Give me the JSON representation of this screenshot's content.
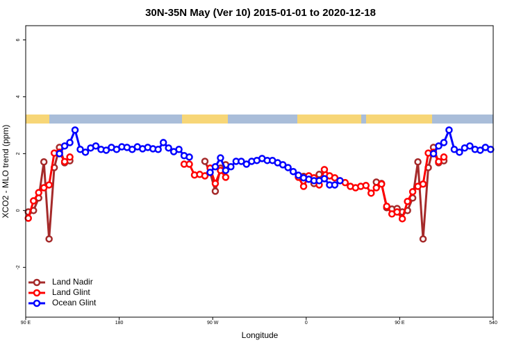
{
  "chart_data": {
    "type": "line",
    "title": "30N-35N May (Ver 10)   2015-01-01 to 2020-12-18",
    "xlabel": "Longitude",
    "ylabel": "XCO2 - MLO trend (ppm)",
    "xlim": [
      90,
      540
    ],
    "ylim": [
      -3.75,
      6.5
    ],
    "xticks": [
      {
        "value": 90,
        "label": "90 E"
      },
      180,
      {
        "value": 270,
        "label": "90 W"
      },
      {
        "value": 360,
        "label": "0"
      },
      {
        "value": 450,
        "label": "90 E"
      },
      540
    ],
    "yticks": [
      -2,
      0,
      2,
      4,
      6
    ],
    "legend": "bottom-left",
    "series": [
      {
        "name": "Land Nadir",
        "color": "#a52a2a",
        "x": [
          92.5,
          97.5,
          102.5,
          107.5,
          112.5,
          117.5,
          122.5,
          127.5,
          132.5,
          187.5,
          262.5,
          267.5,
          272.5,
          277.5,
          282.5,
          317.5,
          357.5,
          362.5,
          367.5,
          372.5,
          400,
          427.5,
          432.5,
          437.5,
          442.5,
          447.5,
          452.5,
          457.5,
          462.5,
          467.5,
          472.5,
          477.5,
          482.5,
          487.5,
          492.5
        ],
        "values": [
          -0.05,
          0.0,
          0.44,
          1.71,
          -1.0,
          1.51,
          2.22,
          1.68,
          1.75,
          null,
          1.73,
          1.34,
          0.68,
          1.49,
          1.61,
          null,
          1.2,
          1.1,
          0.95,
          1.27,
          null,
          1.0,
          0.95,
          0.1,
          0.05,
          0.07,
          -0.05,
          0.0,
          0.44,
          1.71,
          -1.0,
          1.51,
          2.22,
          1.68,
          1.75
        ]
      },
      {
        "name": "Land Glint",
        "color": "#ff0000",
        "x": [
          92.5,
          97.5,
          102.5,
          107.5,
          112.5,
          117.5,
          122.5,
          127.5,
          132.5,
          187.5,
          242.5,
          247.5,
          252.5,
          257.5,
          262.5,
          267.5,
          272.5,
          277.5,
          282.5,
          317.5,
          352.5,
          357.5,
          362.5,
          367.5,
          372.5,
          377.5,
          382.5,
          387.5,
          392.5,
          397.5,
          402.5,
          407.5,
          412.5,
          417.5,
          422.5,
          427.5,
          432.5,
          437.5,
          442.5,
          447.5,
          452.5,
          457.5,
          462.5,
          467.5,
          472.5,
          477.5,
          482.5,
          487.5,
          492.5
        ],
        "values": [
          -0.27,
          0.34,
          0.63,
          0.8,
          0.9,
          2.02,
          2.05,
          1.72,
          1.88,
          null,
          1.63,
          1.63,
          1.25,
          1.27,
          1.22,
          1.49,
          0.95,
          1.41,
          1.17,
          null,
          1.17,
          0.85,
          1.22,
          1.15,
          0.9,
          1.44,
          1.22,
          1.15,
          1.05,
          0.98,
          0.85,
          0.8,
          0.85,
          0.88,
          0.61,
          0.8,
          0.93,
          0.15,
          -0.12,
          -0.05,
          -0.29,
          0.32,
          0.66,
          0.85,
          0.93,
          2.02,
          2.05,
          1.72,
          1.88
        ]
      },
      {
        "name": "Ocean Glint",
        "color": "#0000ff",
        "x": [
          122.5,
          127.5,
          132.5,
          137.5,
          142.5,
          147.5,
          152.5,
          157.5,
          162.5,
          167.5,
          172.5,
          177.5,
          182.5,
          187.5,
          192.5,
          197.5,
          202.5,
          207.5,
          212.5,
          217.5,
          222.5,
          227.5,
          232.5,
          237.5,
          242.5,
          247.5,
          257.5,
          267.5,
          272.5,
          277.5,
          282.5,
          287.5,
          292.5,
          297.5,
          302.5,
          307.5,
          312.5,
          317.5,
          322.5,
          327.5,
          332.5,
          337.5,
          342.5,
          347.5,
          352.5,
          357.5,
          362.5,
          367.5,
          372.5,
          377.5,
          382.5,
          387.5,
          392.5,
          437.5,
          482.5,
          487.5,
          492.5,
          497.5,
          502.5,
          507.5,
          512.5,
          517.5,
          522.5,
          527.5,
          532.5,
          537.5
        ],
        "values": [
          2.0,
          2.27,
          2.39,
          2.83,
          2.15,
          2.05,
          2.2,
          2.27,
          2.15,
          2.12,
          2.22,
          2.15,
          2.24,
          2.22,
          2.15,
          2.24,
          2.17,
          2.22,
          2.17,
          2.15,
          2.39,
          2.2,
          2.07,
          2.15,
          1.93,
          1.88,
          null,
          1.34,
          1.54,
          1.85,
          1.41,
          1.54,
          1.73,
          1.73,
          1.63,
          1.73,
          1.76,
          1.83,
          1.76,
          1.76,
          1.68,
          1.61,
          1.51,
          1.37,
          1.24,
          1.15,
          1.1,
          1.05,
          1.05,
          1.12,
          0.9,
          0.9,
          1.05,
          null,
          2.0,
          2.27,
          2.39,
          2.83,
          2.15,
          2.05,
          2.2,
          2.27,
          2.15,
          2.12,
          2.22,
          2.15
        ]
      }
    ]
  }
}
